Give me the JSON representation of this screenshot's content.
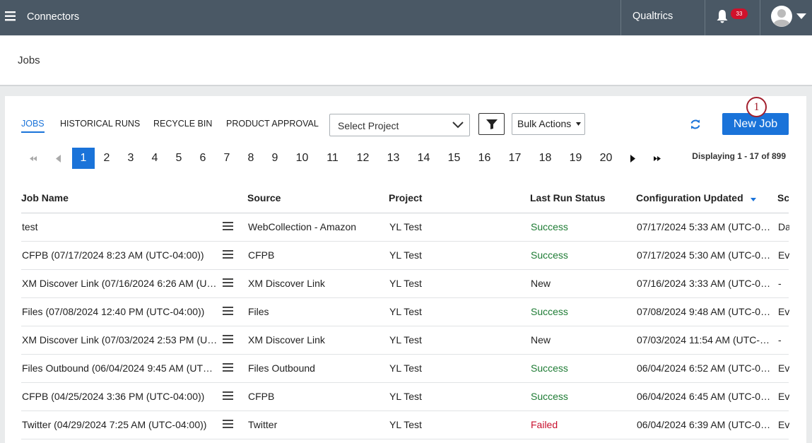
{
  "topbar": {
    "menu_label": "Connectors",
    "brand": "Qualtrics",
    "notification_count": 33
  },
  "page_title": "Jobs",
  "tabs": [
    "JOBS",
    "HISTORICAL RUNS",
    "RECYCLE BIN",
    "PRODUCT APPROVAL"
  ],
  "project_select": "Select Project",
  "bulk_actions": "Bulk Actions",
  "new_job": "New Job",
  "callout": 1,
  "pagination": {
    "pages": [
      1,
      2,
      3,
      4,
      5,
      6,
      7,
      8,
      9,
      10,
      11,
      12,
      13,
      14,
      15,
      16,
      17,
      18,
      19,
      20
    ],
    "status": "Displaying 1 - 17 of 899"
  },
  "table": {
    "headers": [
      "Job Name",
      "Source",
      "Project",
      "Last Run Status",
      "Configuration Updated",
      "Sc"
    ],
    "rows": [
      {
        "name": "test",
        "source": "WebCollection - Amazon",
        "project": "YL Test",
        "status": "Success",
        "status_color": "#1e7b34",
        "updated": "07/17/2024 5:33 AM (UTC-0…",
        "schedule": "Da"
      },
      {
        "name": "CFPB (07/17/2024 8:23 AM (UTC-04:00))",
        "source": "CFPB",
        "project": "YL Test",
        "status": "Success",
        "status_color": "#1e7b34",
        "updated": "07/17/2024 5:30 AM (UTC-0…",
        "schedule": "Ev"
      },
      {
        "name": "XM Discover Link (07/16/2024 6:26 AM (U…",
        "source": "XM Discover Link",
        "project": "YL Test",
        "status": "New",
        "status_color": "#222222",
        "updated": "07/16/2024 3:33 AM (UTC-0…",
        "schedule": "-"
      },
      {
        "name": "Files (07/08/2024 12:40 PM (UTC-04:00))",
        "source": "Files",
        "project": "YL Test",
        "status": "Success",
        "status_color": "#1e7b34",
        "updated": "07/08/2024 9:48 AM (UTC-0…",
        "schedule": "Ev"
      },
      {
        "name": "XM Discover Link (07/03/2024 2:53 PM (U…",
        "source": "XM Discover Link",
        "project": "YL Test",
        "status": "New",
        "status_color": "#222222",
        "updated": "07/03/2024 11:54 AM (UTC-…",
        "schedule": "-"
      },
      {
        "name": "Files Outbound (06/04/2024 9:45 AM (UT…",
        "source": "Files Outbound",
        "project": "YL Test",
        "status": "Success",
        "status_color": "#1e7b34",
        "updated": "06/04/2024 6:52 AM (UTC-0…",
        "schedule": "Ev"
      },
      {
        "name": "CFPB (04/25/2024 3:36 PM (UTC-04:00))",
        "source": "CFPB",
        "project": "YL Test",
        "status": "Success",
        "status_color": "#1e7b34",
        "updated": "06/04/2024 6:45 AM (UTC-0…",
        "schedule": "Ev"
      },
      {
        "name": "Twitter (04/29/2024 7:25 AM (UTC-04:00))",
        "source": "Twitter",
        "project": "YL Test",
        "status": "Failed",
        "status_color": "#c8102e",
        "updated": "06/04/2024 6:39 AM (UTC-0…",
        "schedule": "Ev"
      }
    ]
  }
}
